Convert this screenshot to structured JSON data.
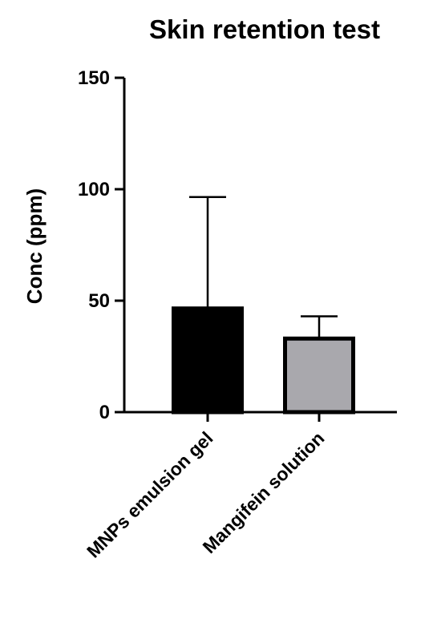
{
  "chart_data": {
    "type": "bar",
    "title": "Skin retention test",
    "ylabel": "Conc (ppm)",
    "xlabel": "",
    "categories": [
      "MNPs emulsion gel",
      "Mangifein solution"
    ],
    "values": [
      46.5,
      33
    ],
    "error_upper": [
      96.5,
      43
    ],
    "ylim": [
      0,
      150
    ],
    "yticks": [
      0,
      50,
      100,
      150
    ],
    "bar_colors": [
      "#000000",
      "#a9a8ad"
    ],
    "bar_edge_color": "#000000",
    "grid": false,
    "legend": "none"
  }
}
